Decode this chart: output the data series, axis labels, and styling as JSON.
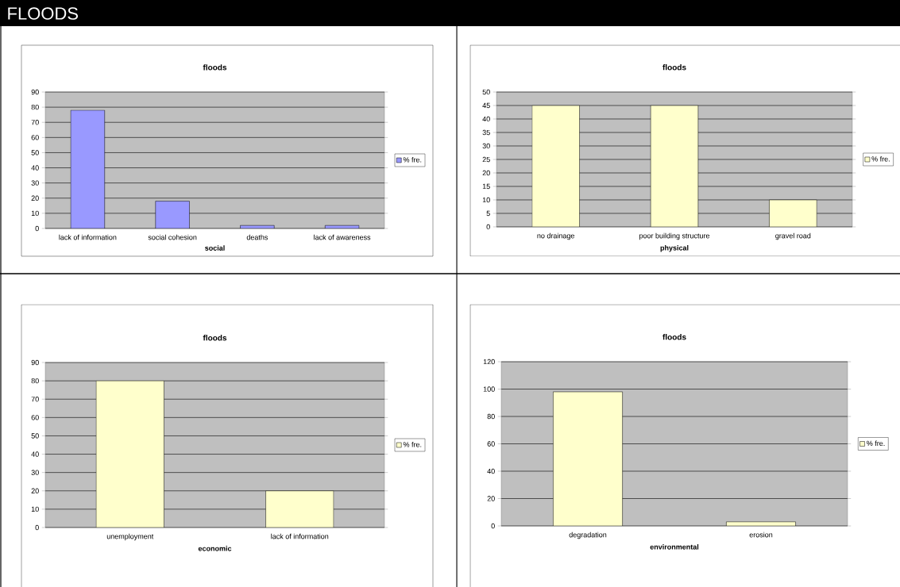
{
  "chart_data": [
    {
      "type": "other",
      "title": "FLOODS"
    },
    {
      "type": "bar",
      "title": "floods",
      "xlabel": "social",
      "categories": [
        "lack of information",
        "social cohesion",
        "deaths",
        "lack of awareness"
      ],
      "series": [
        {
          "name": "% fre.",
          "color": "#9999ff",
          "values": [
            78,
            18,
            2,
            2
          ]
        }
      ],
      "ylim": [
        0,
        90
      ],
      "yticks": [
        0,
        10,
        20,
        30,
        40,
        50,
        60,
        70,
        80,
        90
      ],
      "grid": "y",
      "legend": "right"
    },
    {
      "type": "bar",
      "title": "floods",
      "xlabel": "physical",
      "categories": [
        "no drainage",
        "poor building structure",
        "gravel road"
      ],
      "series": [
        {
          "name": "% fre.",
          "color": "#ffffcc",
          "values": [
            45,
            45,
            10
          ]
        }
      ],
      "ylim": [
        0,
        50
      ],
      "yticks": [
        0,
        5,
        10,
        15,
        20,
        25,
        30,
        35,
        40,
        45,
        50
      ],
      "grid": "y",
      "legend": "right"
    },
    {
      "type": "bar",
      "title": "floods",
      "xlabel": "economic",
      "categories": [
        "unemployment",
        "lack of information"
      ],
      "series": [
        {
          "name": "% fre.",
          "color": "#ffffcc",
          "values": [
            80,
            20
          ]
        }
      ],
      "ylim": [
        0,
        90
      ],
      "yticks": [
        0,
        10,
        20,
        30,
        40,
        50,
        60,
        70,
        80,
        90
      ],
      "grid": "y",
      "legend": "right"
    },
    {
      "type": "bar",
      "title": "floods",
      "xlabel": "environmental",
      "categories": [
        "degradation",
        "erosion"
      ],
      "series": [
        {
          "name": "% fre.",
          "color": "#ffffcc",
          "values": [
            98,
            3
          ]
        }
      ],
      "ylim": [
        0,
        120
      ],
      "yticks": [
        0,
        20,
        40,
        60,
        80,
        100,
        120
      ],
      "grid": "y",
      "legend": "right"
    }
  ]
}
